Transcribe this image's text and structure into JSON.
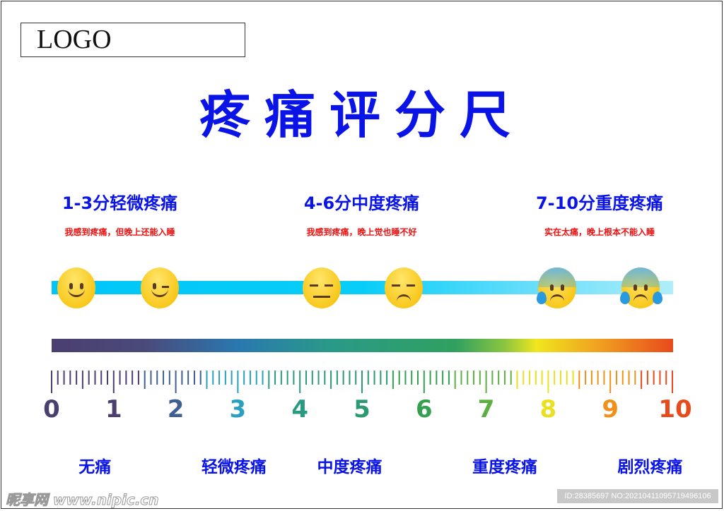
{
  "logo": "LOGO",
  "title": "疼痛评分尺",
  "sections": [
    {
      "heading": "1-3分轻微疼痛",
      "desc": "我感到疼痛，但晚上还能入睡"
    },
    {
      "heading": "4-6分中度疼痛",
      "desc": "我感到疼痛，晚上觉也睡不好"
    },
    {
      "heading": "7-10分重度疼痛",
      "desc": "实在太痛，晚上根本不能入睡"
    }
  ],
  "emojis": [
    "smiling-face-icon",
    "winking-face-icon",
    "expressionless-face-icon",
    "unamused-face-icon",
    "anxious-sweat-face-icon",
    "cold-sweat-crying-face-icon"
  ],
  "scale": {
    "min": 0,
    "max": 10,
    "minor_per_unit": 10,
    "labels": [
      "0",
      "1",
      "2",
      "3",
      "4",
      "5",
      "6",
      "7",
      "8",
      "9",
      "10"
    ],
    "label_colors": [
      "#4a3f70",
      "#4a3f70",
      "#3f5f90",
      "#2aa0c0",
      "#2a9a80",
      "#2a9a70",
      "#35a050",
      "#5cb040",
      "#e8e020",
      "#f0901a",
      "#e84a1c"
    ]
  },
  "levels": [
    {
      "label": "无痛",
      "at": 1
    },
    {
      "label": "轻微疼痛",
      "at": 3
    },
    {
      "label": "中度疼痛",
      "at": 5
    },
    {
      "label": "重度疼痛",
      "at": 7.5
    },
    {
      "label": "剧烈疼痛",
      "at": 10
    }
  ],
  "watermark": {
    "site": "昵享网 www.nipic.cn",
    "id": "ID:28385697 NO:20210411095719496106"
  }
}
